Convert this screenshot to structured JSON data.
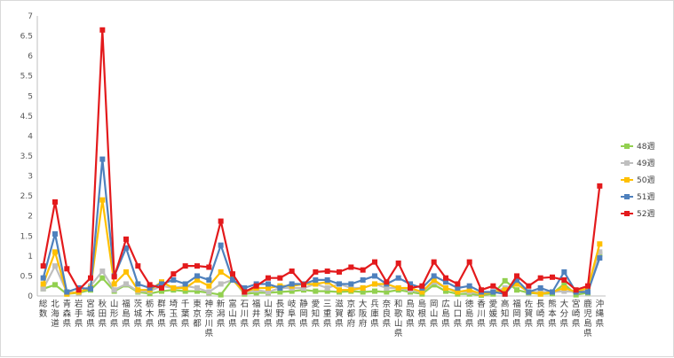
{
  "chart_data": {
    "type": "line",
    "title": "",
    "xlabel": "",
    "ylabel": "",
    "ylim": [
      0,
      7
    ],
    "yticks": [
      "0",
      "0.5",
      "1",
      "1.5",
      "2",
      "2.5",
      "3",
      "3.5",
      "4",
      "4.5",
      "5",
      "5.5",
      "6",
      "6.5",
      "7"
    ],
    "grid": false,
    "legend": "right",
    "categories": [
      "総数",
      "北海道",
      "青森県",
      "岩手県",
      "宮城県",
      "秋田県",
      "山形県",
      "福島県",
      "茨城県",
      "栃木県",
      "群馬県",
      "埼玉県",
      "千葉県",
      "東京都",
      "神奈川県",
      "新潟県",
      "富山県",
      "石川県",
      "福井県",
      "山梨県",
      "長野県",
      "岐阜県",
      "静岡県",
      "愛知県",
      "三重県",
      "滋賀県",
      "京都府",
      "大阪府",
      "兵庫県",
      "奈良県",
      "和歌山県",
      "鳥取県",
      "島根県",
      "岡山県",
      "広島県",
      "山口県",
      "徳島県",
      "香川県",
      "愛媛県",
      "高知県",
      "福岡県",
      "佐賀県",
      "長崎県",
      "熊本県",
      "大分県",
      "宮崎県",
      "鹿児島県",
      "沖縄県"
    ],
    "series": [
      {
        "name": "48週",
        "color": "#92d050",
        "values": [
          0.18,
          0.28,
          0.05,
          0.08,
          0.15,
          0.45,
          0.12,
          0.28,
          0.1,
          0.06,
          0.12,
          0.15,
          0.12,
          0.12,
          0.08,
          0.03,
          0.42,
          0.05,
          0.08,
          0.08,
          0.1,
          0.12,
          0.15,
          0.12,
          0.12,
          0.1,
          0.12,
          0.1,
          0.12,
          0.1,
          0.15,
          0.1,
          0.05,
          0.28,
          0.12,
          0.05,
          0.05,
          0.02,
          0.05,
          0.38,
          0.15,
          0.08,
          0.05,
          0.06,
          0.3,
          0.03,
          0.08,
          1.05
        ]
      },
      {
        "name": "49週",
        "color": "#bfbfbf",
        "values": [
          0.18,
          0.75,
          0.1,
          0.08,
          0.25,
          0.62,
          0.15,
          0.3,
          0.12,
          0.12,
          0.25,
          0.2,
          0.25,
          0.2,
          0.1,
          0.3,
          0.4,
          0.08,
          0.15,
          0.1,
          0.2,
          0.2,
          0.2,
          0.3,
          0.2,
          0.3,
          0.2,
          0.2,
          0.3,
          0.2,
          0.2,
          0.15,
          0.1,
          0.35,
          0.2,
          0.12,
          0.1,
          0.05,
          0.1,
          0.2,
          0.3,
          0.1,
          0.1,
          0.1,
          0.12,
          0.1,
          0.15,
          1.1
        ]
      },
      {
        "name": "50週",
        "color": "#ffc000",
        "values": [
          0.3,
          1.1,
          0.05,
          0.1,
          0.2,
          2.4,
          0.3,
          0.6,
          0.15,
          0.15,
          0.35,
          0.2,
          0.2,
          0.4,
          0.25,
          0.6,
          0.4,
          0.1,
          0.2,
          0.2,
          0.25,
          0.25,
          0.3,
          0.3,
          0.35,
          0.15,
          0.15,
          0.2,
          0.3,
          0.3,
          0.2,
          0.2,
          0.1,
          0.4,
          0.2,
          0.1,
          0.15,
          0.05,
          0.1,
          0.15,
          0.3,
          0.1,
          0.05,
          0.1,
          0.2,
          0.1,
          0.2,
          1.3
        ]
      },
      {
        "name": "51週",
        "color": "#4f81bd",
        "values": [
          0.45,
          1.55,
          0.1,
          0.2,
          0.18,
          3.42,
          0.5,
          1.2,
          0.3,
          0.2,
          0.3,
          0.4,
          0.3,
          0.5,
          0.4,
          1.27,
          0.4,
          0.2,
          0.3,
          0.3,
          0.2,
          0.3,
          0.3,
          0.4,
          0.4,
          0.3,
          0.3,
          0.4,
          0.5,
          0.3,
          0.45,
          0.3,
          0.2,
          0.5,
          0.35,
          0.2,
          0.25,
          0.1,
          0.1,
          0.05,
          0.4,
          0.1,
          0.2,
          0.1,
          0.6,
          0.1,
          0.1,
          0.95
        ]
      },
      {
        "name": "52週",
        "color": "#e31a1c",
        "values": [
          0.75,
          2.35,
          0.68,
          0.15,
          0.45,
          6.65,
          0.48,
          1.42,
          0.75,
          0.28,
          0.2,
          0.55,
          0.75,
          0.75,
          0.72,
          1.87,
          0.55,
          0.1,
          0.25,
          0.45,
          0.45,
          0.62,
          0.28,
          0.6,
          0.62,
          0.6,
          0.72,
          0.65,
          0.85,
          0.35,
          0.82,
          0.2,
          0.25,
          0.85,
          0.45,
          0.3,
          0.85,
          0.15,
          0.25,
          0.05,
          0.5,
          0.25,
          0.45,
          0.47,
          0.4,
          0.15,
          0.25,
          2.75
        ]
      }
    ]
  }
}
